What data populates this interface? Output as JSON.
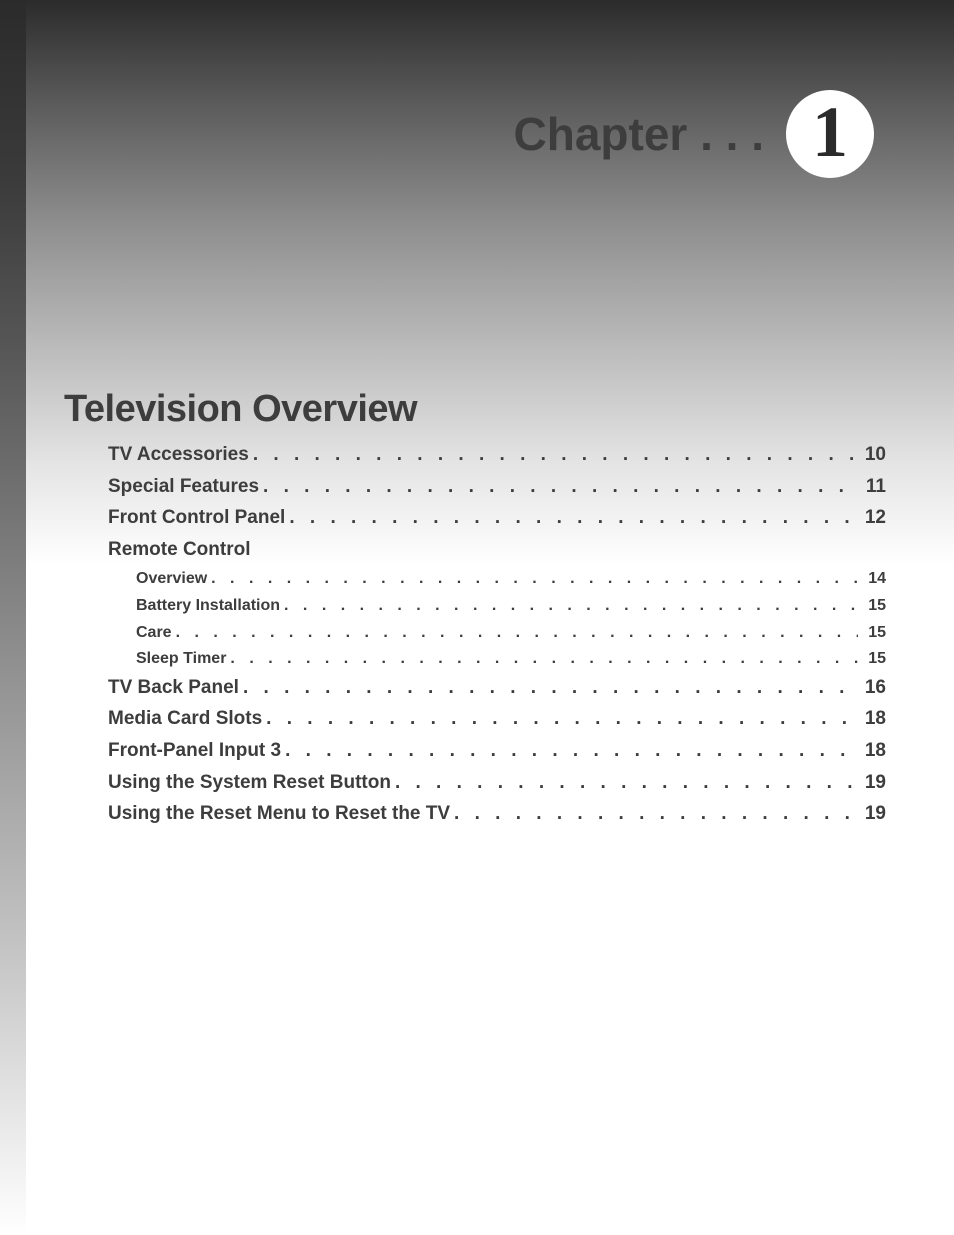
{
  "header": {
    "chapter_label": "Chapter . . .",
    "chapter_number": "1",
    "badge_bg": "#ffffff",
    "badge_fg": "#2b2b2b"
  },
  "section": {
    "title": "Television Overview",
    "title_color": "#3d3d3d"
  },
  "toc": {
    "text_color": "#3d3d3d",
    "main_fontsize": 19,
    "sub_fontsize": 16,
    "items": [
      {
        "level": "main",
        "label": "TV Accessories",
        "page": "10"
      },
      {
        "level": "main",
        "label": "Special Features",
        "page": "11"
      },
      {
        "level": "main",
        "label": "Front Control Panel",
        "page": "12"
      },
      {
        "level": "main",
        "label": "Remote Control",
        "page": ""
      },
      {
        "level": "sub",
        "label": "Overview",
        "page": "14"
      },
      {
        "level": "sub",
        "label": "Battery Installation",
        "page": "15"
      },
      {
        "level": "sub",
        "label": "Care",
        "page": "15"
      },
      {
        "level": "sub",
        "label": "Sleep Timer",
        "page": "15"
      },
      {
        "level": "main",
        "label": "TV Back Panel",
        "page": "16"
      },
      {
        "level": "main",
        "label": "Media Card Slots",
        "page": "18"
      },
      {
        "level": "main",
        "label": "Front-Panel Input 3",
        "page": "18"
      },
      {
        "level": "main",
        "label": "Using the System Reset Button",
        "page": "19"
      },
      {
        "level": "main",
        "label": "Using the Reset Menu to Reset the TV",
        "page": "19"
      }
    ]
  },
  "style": {
    "page_bg": "#ffffff",
    "gradient_top_color": "#2b2b2b",
    "gradient_bottom_color": "#ffffff"
  }
}
